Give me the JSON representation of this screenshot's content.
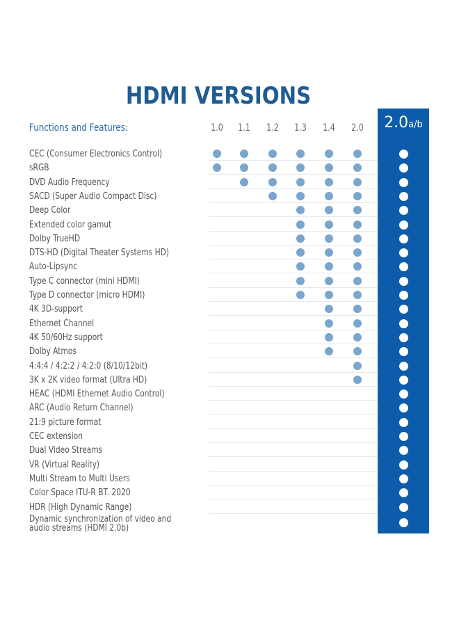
{
  "title": "HDMI VERSIONS",
  "header_label": "Functions and Features:",
  "versions": [
    "1.0",
    "1.1",
    "1.2",
    "1.3",
    "1.4",
    "2.0"
  ],
  "highlight_version": {
    "main": "2.0",
    "suffix": "a/b"
  },
  "colors": {
    "title": "#1f5c93",
    "highlight_column": "#0c5cab",
    "dot": "#7aa5cc",
    "highlight_dot": "#ffffff"
  },
  "features": [
    {
      "label": "CEC (Consumer Electronics Control)",
      "support": [
        1,
        1,
        1,
        1,
        1,
        1,
        1
      ]
    },
    {
      "label": "sRGB",
      "support": [
        1,
        1,
        1,
        1,
        1,
        1,
        1
      ]
    },
    {
      "label": "DVD Audio Frequency",
      "support": [
        0,
        1,
        1,
        1,
        1,
        1,
        1
      ]
    },
    {
      "label": "SACD (Super Audio Compact Disc)",
      "support": [
        0,
        0,
        1,
        1,
        1,
        1,
        1
      ]
    },
    {
      "label": "Deep Color",
      "support": [
        0,
        0,
        0,
        1,
        1,
        1,
        1
      ]
    },
    {
      "label": "Extended color gamut",
      "support": [
        0,
        0,
        0,
        1,
        1,
        1,
        1
      ]
    },
    {
      "label": "Dolby TrueHD",
      "support": [
        0,
        0,
        0,
        1,
        1,
        1,
        1
      ]
    },
    {
      "label": "DTS-HD (Digital Theater Systems HD)",
      "support": [
        0,
        0,
        0,
        1,
        1,
        1,
        1
      ]
    },
    {
      "label": "Auto-Lipsync",
      "support": [
        0,
        0,
        0,
        1,
        1,
        1,
        1
      ]
    },
    {
      "label": "Type C connector (mini HDMI)",
      "support": [
        0,
        0,
        0,
        1,
        1,
        1,
        1
      ]
    },
    {
      "label": "Type D connector (micro HDMI)",
      "support": [
        0,
        0,
        0,
        1,
        1,
        1,
        1
      ]
    },
    {
      "label": "4K 3D-support",
      "support": [
        0,
        0,
        0,
        0,
        1,
        1,
        1
      ]
    },
    {
      "label": "Ethernet Channel",
      "support": [
        0,
        0,
        0,
        0,
        1,
        1,
        1
      ]
    },
    {
      "label": "4K 50/60Hz support",
      "support": [
        0,
        0,
        0,
        0,
        1,
        1,
        1
      ]
    },
    {
      "label": "Dolby Atmos",
      "support": [
        0,
        0,
        0,
        0,
        1,
        1,
        1
      ]
    },
    {
      "label": "4:4:4 / 4:2:2 / 4:2:0   (8/10/12bit)",
      "support": [
        0,
        0,
        0,
        0,
        0,
        1,
        1
      ]
    },
    {
      "label": "3K x 2K video format (Ultra HD)",
      "support": [
        0,
        0,
        0,
        0,
        0,
        1,
        1
      ]
    },
    {
      "label": "HEAC (HDMI Ethernet Audio Control)",
      "support": [
        0,
        0,
        0,
        0,
        0,
        0,
        1
      ]
    },
    {
      "label": "ARC (Audio Return Channel)",
      "support": [
        0,
        0,
        0,
        0,
        0,
        0,
        1
      ]
    },
    {
      "label": "21:9 picture format",
      "support": [
        0,
        0,
        0,
        0,
        0,
        0,
        1
      ]
    },
    {
      "label": "CEC extension",
      "support": [
        0,
        0,
        0,
        0,
        0,
        0,
        1
      ]
    },
    {
      "label": "Dual Video Streams",
      "support": [
        0,
        0,
        0,
        0,
        0,
        0,
        1
      ]
    },
    {
      "label": "VR (Virtual Reality)",
      "support": [
        0,
        0,
        0,
        0,
        0,
        0,
        1
      ]
    },
    {
      "label": "Multi Stream to Multi Users",
      "support": [
        0,
        0,
        0,
        0,
        0,
        0,
        1
      ]
    },
    {
      "label": "Color Space ITU-R BT. 2020",
      "support": [
        0,
        0,
        0,
        0,
        0,
        0,
        1
      ]
    },
    {
      "label": "HDR (High Dynamic Range)",
      "support": [
        0,
        0,
        0,
        0,
        0,
        0,
        1
      ]
    },
    {
      "label": "Dynamic synchronization of video and audio streams (HDMI 2.0b)",
      "support": [
        0,
        0,
        0,
        0,
        0,
        0,
        1
      ]
    }
  ]
}
